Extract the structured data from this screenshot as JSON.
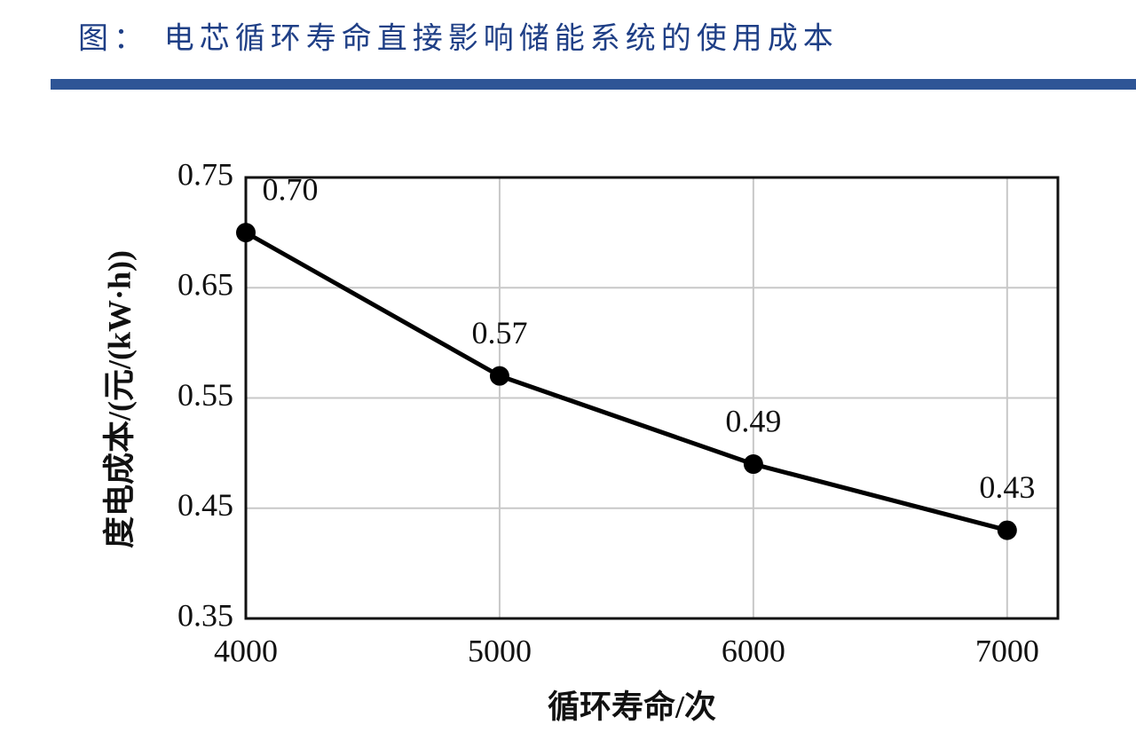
{
  "chart_data": {
    "type": "line",
    "title": "图： 电芯循环寿命直接影响储能系统的使用成本",
    "x_label": "循环寿命/次",
    "y_label": "度电成本/(元/(kW·h))",
    "x": [
      4000,
      5000,
      6000,
      7000
    ],
    "values": [
      0.7,
      0.57,
      0.49,
      0.43
    ],
    "value_labels": [
      "0.70",
      "0.57",
      "0.49",
      "0.43"
    ],
    "color": "#000000",
    "xlim": [
      4000,
      7200
    ],
    "xticks": [
      4000,
      5000,
      6000,
      7000
    ],
    "ylim": [
      0.35,
      0.75
    ],
    "yticks": [
      0.35,
      0.45,
      0.55,
      0.65,
      0.75
    ],
    "grid": true
  }
}
